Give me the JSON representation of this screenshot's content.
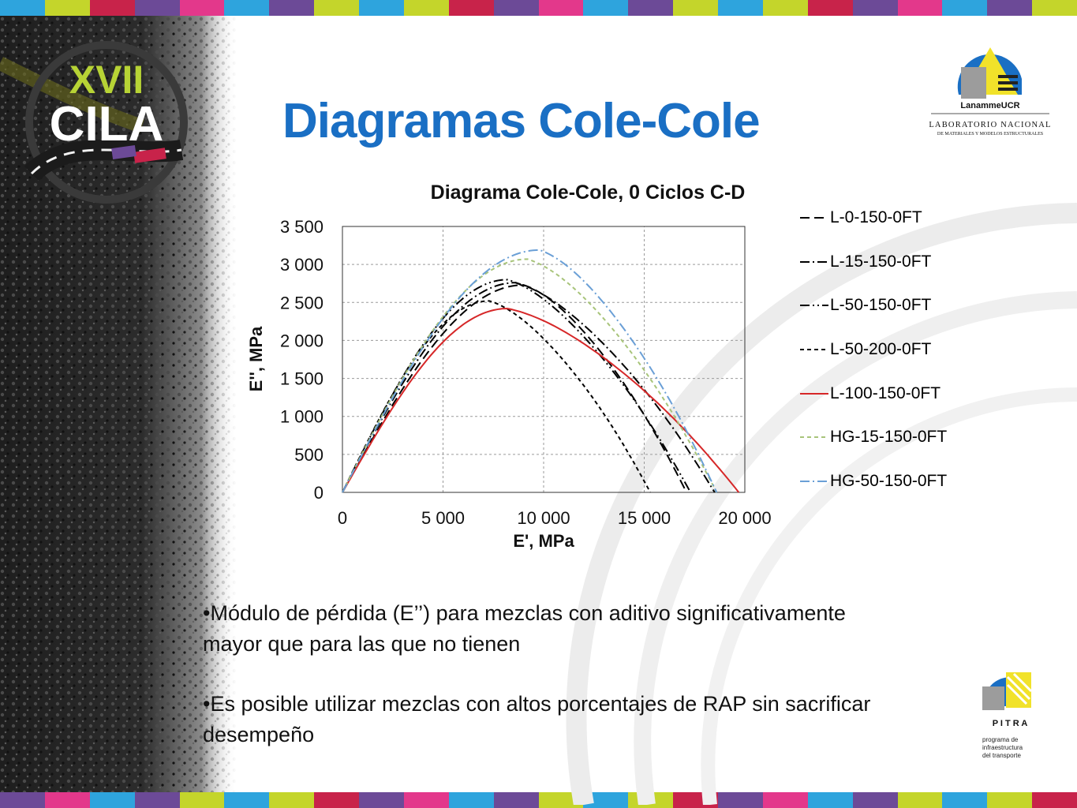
{
  "page_title": "Diagramas Cole-Cole",
  "logos": {
    "event": {
      "line1": "XVII",
      "line2": "CILA"
    },
    "lab": {
      "name": "LanammeUCR",
      "line1": "LABORATORIO NACIONAL",
      "line2": "DE MATERIALES Y MODELOS ESTRUCTURALES"
    },
    "pitra": {
      "name": "P I T R A",
      "line1": "programa de",
      "line2": "infraestructura",
      "line3": "del transporte"
    }
  },
  "colors": {
    "title": "#1a6fc4",
    "stripes": [
      "#2ea4dd",
      "#c4d52b",
      "#c8234a",
      "#6c4a97",
      "#e3388b",
      "#2ea4dd",
      "#6c4a97",
      "#c4d52b"
    ]
  },
  "chart_data": {
    "type": "line",
    "title": "Diagrama Cole-Cole, 0 Ciclos C-D",
    "xlabel": "E', MPa",
    "ylabel": "E'', MPa",
    "xlim": [
      0,
      20000
    ],
    "ylim": [
      0,
      3500
    ],
    "xticks": [
      0,
      5000,
      10000,
      15000,
      20000
    ],
    "xtick_labels": [
      "0",
      "5 000",
      "10 000",
      "15 000",
      "20 000"
    ],
    "yticks": [
      0,
      500,
      1000,
      1500,
      2000,
      2500,
      3000,
      3500
    ],
    "ytick_labels": [
      "0",
      "500",
      "1 000",
      "1 500",
      "2 000",
      "2 500",
      "3 000",
      "3 500"
    ],
    "grid": true,
    "legend_position": "right",
    "series": [
      {
        "name": "L-0-150-0FT",
        "color": "#000000",
        "dash": "long",
        "peak_x": 9000,
        "peak_y": 2730,
        "x_end": 17100
      },
      {
        "name": "L-15-150-0FT",
        "color": "#000000",
        "dash": "dashdot",
        "peak_x": 8600,
        "peak_y": 2760,
        "x_end": 18500
      },
      {
        "name": "L-50-150-0FT",
        "color": "#000000",
        "dash": "dashdotdot",
        "peak_x": 8200,
        "peak_y": 2800,
        "x_end": 17300
      },
      {
        "name": "L-50-200-0FT",
        "color": "#000000",
        "dash": "short",
        "peak_x": 7300,
        "peak_y": 2520,
        "x_end": 15300
      },
      {
        "name": "L-100-150-0FT",
        "color": "#d62728",
        "dash": "solid",
        "peak_x": 8200,
        "peak_y": 2420,
        "x_end": 19700
      },
      {
        "name": "HG-15-150-0FT",
        "color": "#a8c47a",
        "dash": "short",
        "peak_x": 9200,
        "peak_y": 3070,
        "x_end": 18600
      },
      {
        "name": "HG-50-150-0FT",
        "color": "#6a9fd6",
        "dash": "dashdot",
        "peak_x": 9800,
        "peak_y": 3190,
        "x_end": 18600
      }
    ]
  },
  "bullets": [
    "•Módulo de pérdida (E’’) para mezclas con aditivo significativamente mayor que para las que no tienen",
    "•Es posible utilizar mezclas con altos porcentajes de RAP sin sacrificar desempeño"
  ]
}
